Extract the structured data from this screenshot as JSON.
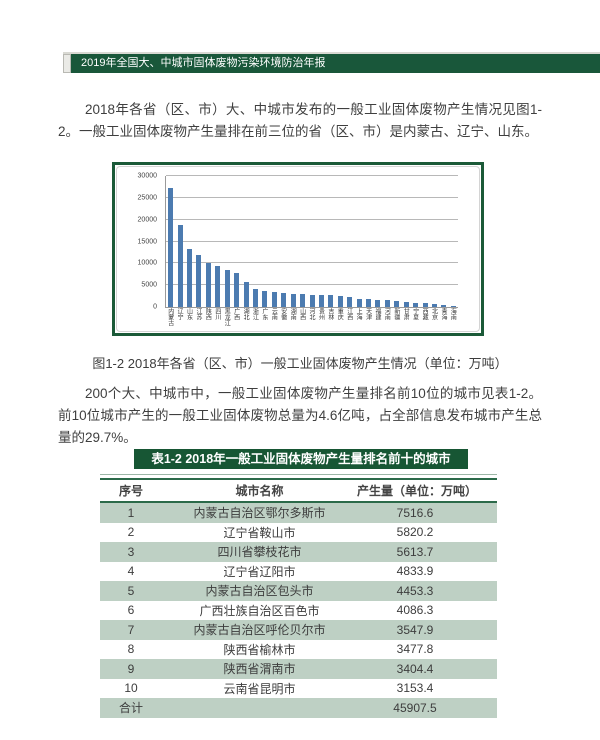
{
  "page": {
    "header": {
      "title": "2019年全国大、中城市固体废物污染环境防治年报",
      "bar_color": "#19573a"
    },
    "paragraph1": "2018年各省（区、市）大、中城市发布的一般工业固体废物产生情况见图1-2。一般工业固体废物产生量排在前三位的省（区、市）是内蒙古、辽宁、山东。",
    "figure_caption": "图1-2 2018年各省（区、市）一般工业固体废物产生情况（单位：万吨）",
    "paragraph2": "200个大、中城市中，一般工业固体废物产生量排名前10位的城市见表1-2。前10位城市产生的一般工业固体废物总量为4.6亿吨，占全部信息发布城市产生总量的29.7%。",
    "table": {
      "title": "表1-2 2018年一般工业固体废物产生量排名前十的城市",
      "title_bg": "#175634",
      "row_alt_bg": "#bed0c4",
      "columns": [
        "序号",
        "城市名称",
        "产生量（单位：万吨）"
      ],
      "rows": [
        {
          "rank": "1",
          "city": "内蒙古自治区鄂尔多斯市",
          "value": "7516.6"
        },
        {
          "rank": "2",
          "city": "辽宁省鞍山市",
          "value": "5820.2"
        },
        {
          "rank": "3",
          "city": "四川省攀枝花市",
          "value": "5613.7"
        },
        {
          "rank": "4",
          "city": "辽宁省辽阳市",
          "value": "4833.9"
        },
        {
          "rank": "5",
          "city": "内蒙古自治区包头市",
          "value": "4453.3"
        },
        {
          "rank": "6",
          "city": "广西壮族自治区百色市",
          "value": "4086.3"
        },
        {
          "rank": "7",
          "city": "内蒙古自治区呼伦贝尔市",
          "value": "3547.9"
        },
        {
          "rank": "8",
          "city": "陕西省榆林市",
          "value": "3477.8"
        },
        {
          "rank": "9",
          "city": "陕西省渭南市",
          "value": "3404.4"
        },
        {
          "rank": "10",
          "city": "云南省昆明市",
          "value": "3153.4"
        }
      ],
      "total_label": "合计",
      "total_value": "45907.5"
    }
  },
  "chart_data": {
    "type": "bar",
    "title": "",
    "xlabel": "",
    "ylabel": "",
    "categories": [
      "内蒙古",
      "辽宁",
      "山东",
      "江苏",
      "陕西",
      "四川",
      "黑龙江",
      "广西",
      "湖北",
      "浙江",
      "广东",
      "云南",
      "安徽",
      "湖南",
      "山西",
      "河北",
      "贵州",
      "吉林",
      "重庆",
      "江西",
      "上海",
      "天津",
      "福建",
      "河南",
      "新疆",
      "甘肃",
      "宁夏",
      "西藏",
      "北京",
      "青海",
      "海南"
    ],
    "values": [
      27200,
      18800,
      13200,
      11900,
      10100,
      9400,
      8500,
      7800,
      5800,
      4200,
      3600,
      3350,
      3300,
      3000,
      2900,
      2800,
      2750,
      2650,
      2600,
      2400,
      1800,
      1750,
      1600,
      1500,
      1450,
      1250,
      1000,
      950,
      700,
      400,
      150
    ],
    "ylim": [
      0,
      30000
    ],
    "yticks": [
      0,
      5000,
      10000,
      15000,
      20000,
      25000,
      30000
    ],
    "grid": true,
    "legend": null,
    "bar_color": "#4c7bb0"
  }
}
